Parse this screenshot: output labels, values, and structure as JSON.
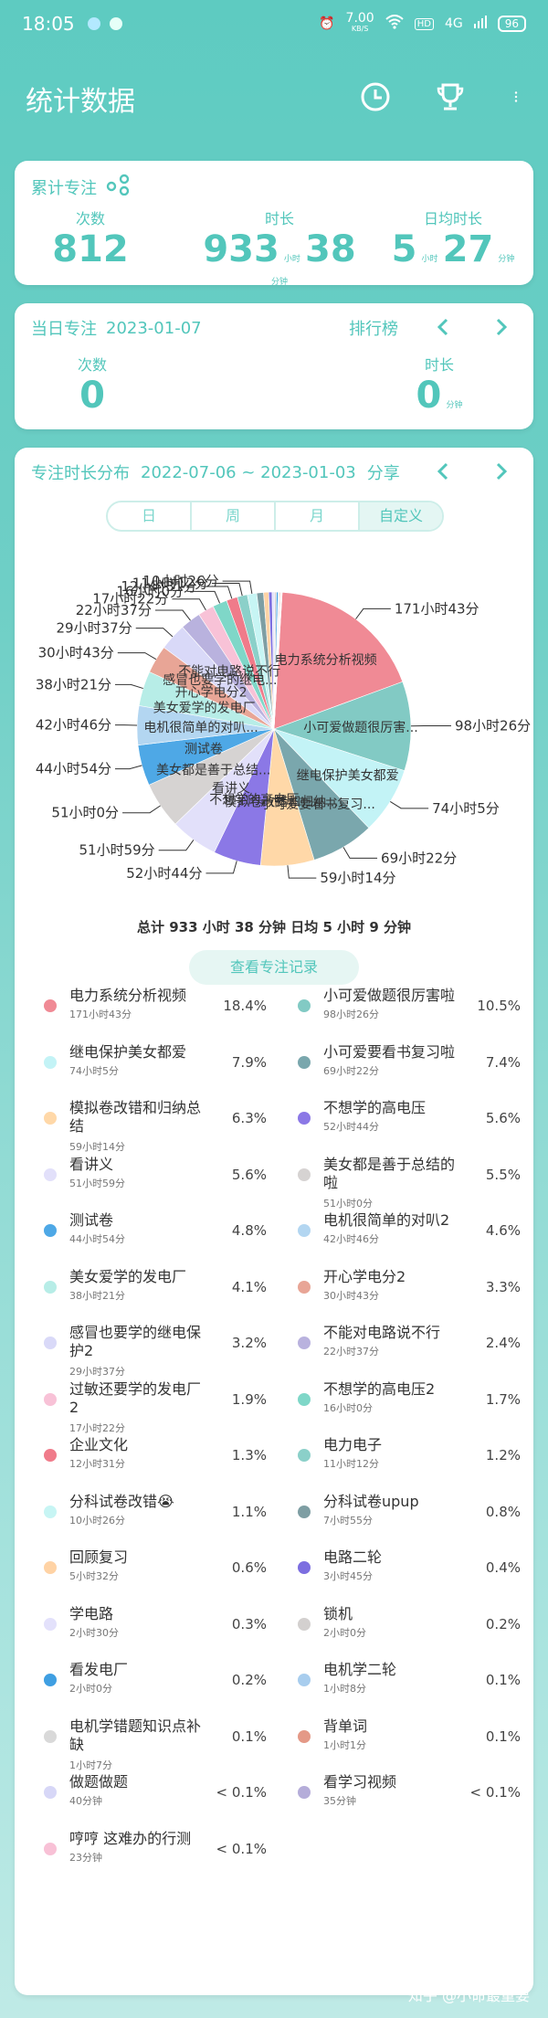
{
  "status": {
    "time": "18:05",
    "speed": "7.00",
    "speed_unit": "KB/S",
    "hd": "HD",
    "signal": "4G",
    "battery": "96"
  },
  "appbar": {
    "title": "统计数据"
  },
  "total": {
    "title": "累计专注",
    "count_label": "次数",
    "count": "812",
    "duration_label": "时长",
    "duration_h": "933",
    "duration_h_unit": "小时",
    "duration_m": "38",
    "duration_m_unit": "分钟",
    "daily_label": "日均时长",
    "daily_h": "5",
    "daily_h_unit": "小时",
    "daily_m": "27",
    "daily_m_unit": "分钟"
  },
  "today": {
    "title": "当日专注",
    "date": "2023-01-07",
    "rank_label": "排行榜",
    "count_label": "次数",
    "count": "0",
    "duration_label": "时长",
    "duration": "0",
    "duration_unit": "分钟"
  },
  "distribution": {
    "title": "专注时长分布",
    "range": "2022-07-06 ~ 2023-01-03",
    "share": "分享",
    "tabs": [
      "日",
      "周",
      "月",
      "自定义"
    ],
    "summary": "总计 933 小时 38 分钟 日均 5 小时 9 分钟",
    "record_button": "查看专注记录"
  },
  "chart_data": {
    "type": "pie",
    "slices": [
      {
        "name": "电力系统分析视频",
        "time": "171小时43分",
        "pct": "18.4%",
        "value": 18.4,
        "color": "#f08a95"
      },
      {
        "name": "小可爱做题很厉害啦",
        "time": "98小时26分",
        "pct": "10.5%",
        "value": 10.5,
        "color": "#82cac4"
      },
      {
        "name": "继电保护美女都爱",
        "time": "74小时5分",
        "pct": "7.9%",
        "value": 7.9,
        "color": "#c3f3f6"
      },
      {
        "name": "小可爱要看书复习啦",
        "time": "69小时22分",
        "pct": "7.4%",
        "value": 7.4,
        "color": "#7aa7ad"
      },
      {
        "name": "模拟卷改错和归纳总结",
        "time": "59小时14分",
        "pct": "6.3%",
        "value": 6.3,
        "color": "#ffd8a8"
      },
      {
        "name": "不想学的高电压",
        "time": "52小时44分",
        "pct": "5.6%",
        "value": 5.6,
        "color": "#8b78e6"
      },
      {
        "name": "看讲义",
        "time": "51小时59分",
        "pct": "5.6%",
        "value": 5.6,
        "color": "#e2e0fa"
      },
      {
        "name": "美女都是善于总结的啦",
        "time": "51小时0分",
        "pct": "5.5%",
        "value": 5.5,
        "color": "#d6d3d2"
      },
      {
        "name": "测试卷",
        "time": "44小时54分",
        "pct": "4.8%",
        "value": 4.8,
        "color": "#4ea8e6"
      },
      {
        "name": "电机很简单的对叭2",
        "time": "42小时46分",
        "pct": "4.6%",
        "value": 4.6,
        "color": "#b3d6f1"
      },
      {
        "name": "美女爱学的发电厂",
        "time": "38小时21分",
        "pct": "4.1%",
        "value": 4.1,
        "color": "#b7ede7"
      },
      {
        "name": "开心学电分2",
        "time": "30小时43分",
        "pct": "3.3%",
        "value": 3.3,
        "color": "#e8a596"
      },
      {
        "name": "感冒也要学的继电保护2",
        "time": "29小时37分",
        "pct": "3.2%",
        "value": 3.2,
        "color": "#d9d9f8"
      },
      {
        "name": "不能对电路说不行",
        "time": "22小时37分",
        "pct": "2.4%",
        "value": 2.4,
        "color": "#b9b2de"
      },
      {
        "name": "过敏还要学的发电厂2",
        "time": "17小时22分",
        "pct": "1.9%",
        "value": 1.9,
        "color": "#f8c2d7"
      },
      {
        "name": "不想学的高电压2",
        "time": "16小时0分",
        "pct": "1.7%",
        "value": 1.7,
        "color": "#7fd7c8"
      },
      {
        "name": "企业文化",
        "time": "12小时31分",
        "pct": "1.3%",
        "value": 1.3,
        "color": "#f07b8a"
      },
      {
        "name": "电力电子",
        "time": "11小时12分",
        "pct": "1.2%",
        "value": 1.2,
        "color": "#8bd0c9"
      },
      {
        "name": "分科试卷改错😭",
        "time": "10小时26分",
        "pct": "1.1%",
        "value": 1.1,
        "color": "#c7f5f4"
      },
      {
        "name": "分科试卷upup",
        "time": "7小时55分",
        "pct": "0.8%",
        "value": 0.8,
        "color": "#7e9ea3"
      },
      {
        "name": "回顾复习",
        "time": "5小时32分",
        "pct": "0.6%",
        "value": 0.6,
        "color": "#ffd3a5"
      },
      {
        "name": "电路二轮",
        "time": "3小时45分",
        "pct": "0.4%",
        "value": 0.4,
        "color": "#7c6ee0"
      },
      {
        "name": "学电路",
        "time": "2小时30分",
        "pct": "0.3%",
        "value": 0.3,
        "color": "#e3e1fb"
      },
      {
        "name": "锁机",
        "time": "2小时0分",
        "pct": "0.2%",
        "value": 0.2,
        "color": "#d3d0cf"
      },
      {
        "name": "看发电厂",
        "time": "2小时0分",
        "pct": "0.2%",
        "value": 0.2,
        "color": "#3f9fe2"
      },
      {
        "name": "电机学二轮",
        "time": "1小时8分",
        "pct": "0.1%",
        "value": 0.1,
        "color": "#a8cdee"
      },
      {
        "name": "电机学错题知识点补缺",
        "time": "1小时7分",
        "pct": "0.1%",
        "value": 0.1,
        "color": "#d9d9d9"
      },
      {
        "name": "背单词",
        "time": "1小时1分",
        "pct": "0.1%",
        "value": 0.1,
        "color": "#e49987"
      },
      {
        "name": "做题做题",
        "time": "40分钟",
        "pct": "< 0.1%",
        "value": 0.07,
        "color": "#d7d7f7"
      },
      {
        "name": "看学习视频",
        "time": "35分钟",
        "pct": "< 0.1%",
        "value": 0.06,
        "color": "#b5add9"
      },
      {
        "name": "哼哼 这难办的行测",
        "time": "23分钟",
        "pct": "< 0.1%",
        "value": 0.04,
        "color": "#f8c1d6"
      }
    ],
    "outer_labels": [
      "171小时43分",
      "98小时26分",
      "74小时5分",
      "69小时22分",
      "59小时14分",
      "52小时44分",
      "51小时59分",
      "51小时0分",
      "44小时54分",
      "42小时46分",
      "38小时21分",
      "30小时43分",
      "29小时37分",
      "22小时37分",
      "17小时22分",
      "16小时0分",
      "12小时31分",
      "11小时12分",
      "10小时26分"
    ],
    "inner_labels": [
      "电力系统分析视频",
      "小可爱做题很厉害...",
      "继电保护美女都爱",
      "小可爱要看书复习...",
      "模拟卷改错和归纳...",
      "不想学的高电压",
      "看讲义",
      "美女都是善于总结...",
      "测试卷",
      "电机很简单的对叭...",
      "美女爱学的发电厂",
      "开心学电分2",
      "感冒也要学的继电...",
      "不能对电路说不行"
    ]
  },
  "watermark": "知乎 @小命最重要"
}
